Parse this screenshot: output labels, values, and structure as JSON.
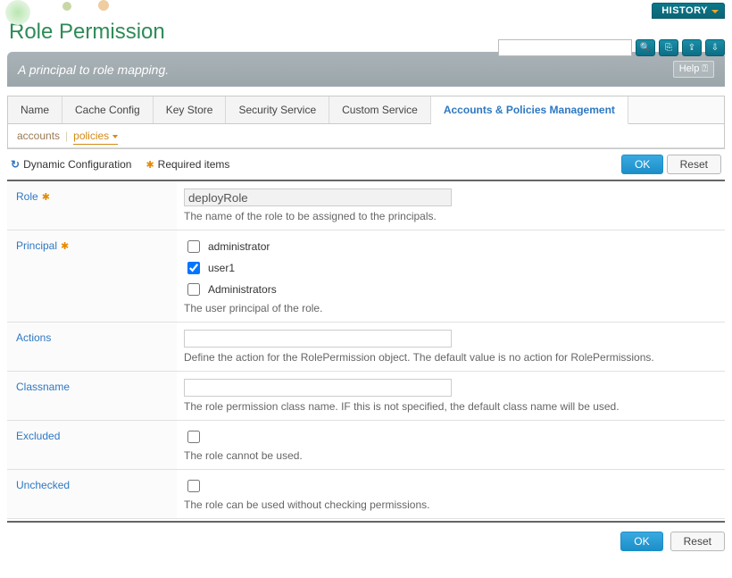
{
  "header": {
    "title": "Role Permission",
    "history_label": "HISTORY"
  },
  "search": {
    "placeholder": ""
  },
  "banner": {
    "subtitle": "A principal to role mapping.",
    "help_label": "Help ⍰"
  },
  "tabs": {
    "items": [
      {
        "label": "Name"
      },
      {
        "label": "Cache Config"
      },
      {
        "label": "Key Store"
      },
      {
        "label": "Security Service"
      },
      {
        "label": "Custom Service"
      },
      {
        "label": "Accounts & Policies Management"
      }
    ],
    "active_index": 5
  },
  "subtabs": {
    "items": [
      {
        "label": "accounts"
      },
      {
        "label": "policies"
      }
    ],
    "active_index": 1
  },
  "legend": {
    "dynamic_label": "Dynamic Configuration",
    "required_label": "Required items"
  },
  "actions": {
    "ok_label": "OK",
    "reset_label": "Reset"
  },
  "form": {
    "role": {
      "label": "Role",
      "value": "deployRole",
      "required": true,
      "help": "The name of the role to be assigned to the principals."
    },
    "principal": {
      "label": "Principal",
      "required": true,
      "options": [
        {
          "label": "administrator",
          "checked": false
        },
        {
          "label": "user1",
          "checked": true
        },
        {
          "label": "Administrators",
          "checked": false
        }
      ],
      "help": "The user principal of the role."
    },
    "actionsfield": {
      "label": "Actions",
      "value": "",
      "help": "Define the action for the RolePermission object. The default value is no action for RolePermissions."
    },
    "classname": {
      "label": "Classname",
      "value": "",
      "help": "The role permission class name. IF this is not specified, the default class name will be used."
    },
    "excluded": {
      "label": "Excluded",
      "checked": false,
      "help": "The role cannot be used."
    },
    "unchecked": {
      "label": "Unchecked",
      "checked": false,
      "help": "The role can be used without checking permissions."
    }
  },
  "colors": {
    "accent": "#2e78c2",
    "title_color": "#2e8b57",
    "required_color": "#e68a00",
    "banner_bg": "#9ea8ad",
    "primary_btn": "#2596cc"
  }
}
